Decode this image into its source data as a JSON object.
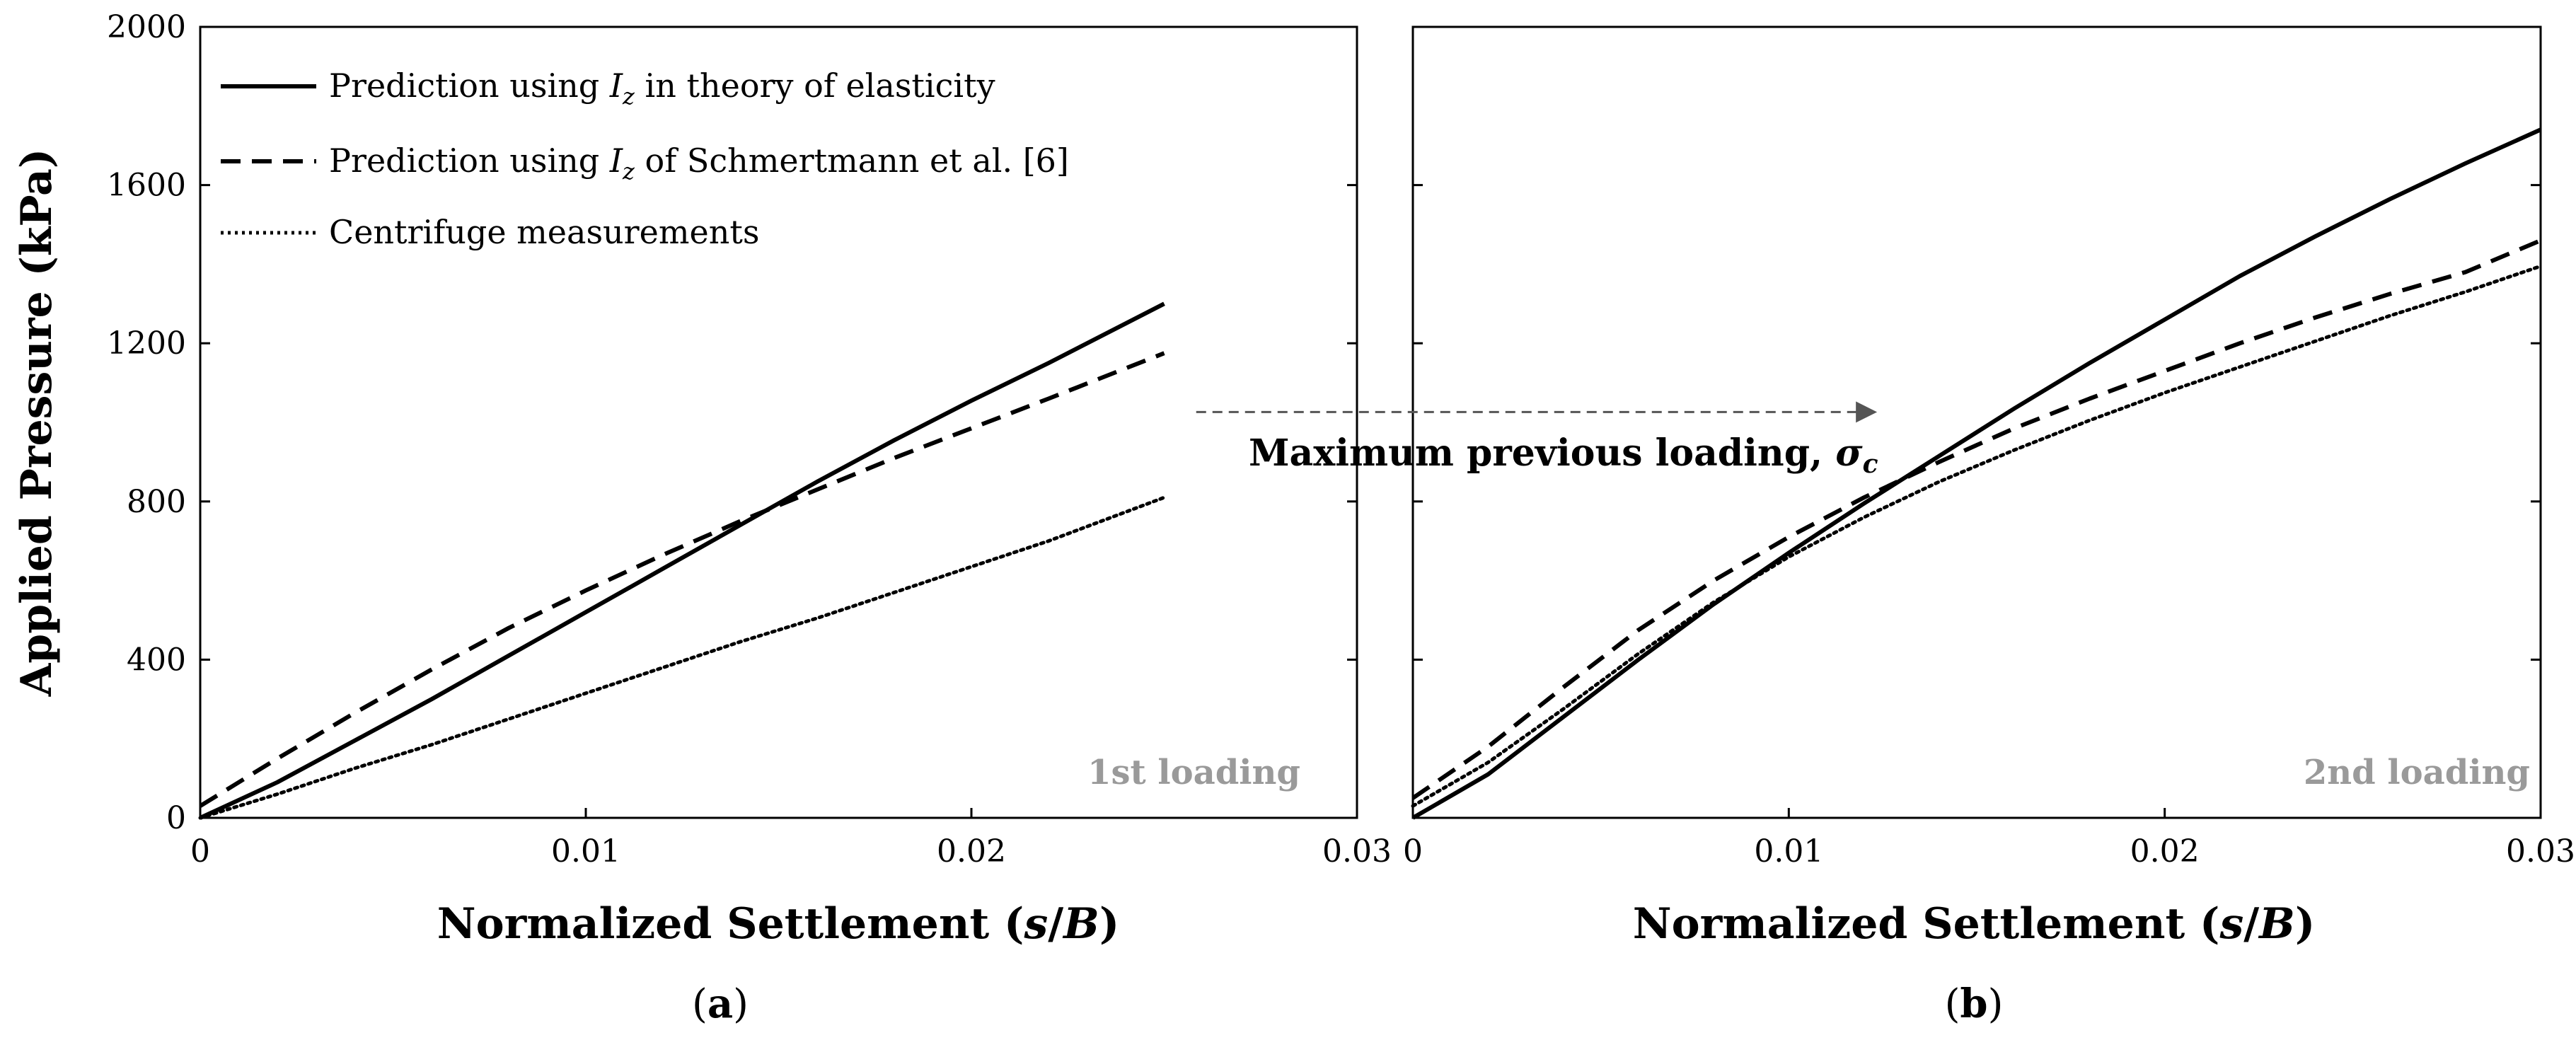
{
  "chart_data": [
    {
      "type": "line",
      "panel_label": "(a)",
      "loading_label": "1st loading",
      "xlabel": "Normalized Settlement (s/B)",
      "ylabel": "Applied Pressure (kPa)",
      "xlim": [
        0,
        0.03
      ],
      "ylim": [
        0,
        2000
      ],
      "xticks": [
        "0",
        "0.01",
        "0.02",
        "0.03"
      ],
      "yticks": [
        "0",
        "400",
        "800",
        "1200",
        "1600",
        "2000"
      ],
      "legend": {
        "placement": "top-left",
        "entries": [
          {
            "text": "Prediction using I_z in theory of elasticity",
            "style": "solid"
          },
          {
            "text": "Prediction using I_z of Schmertmann et al. [6]",
            "style": "dashed"
          },
          {
            "text": "Centrifuge measurements",
            "style": "dotted"
          }
        ]
      },
      "series": [
        {
          "style": "solid",
          "x": [
            0,
            0.002,
            0.004,
            0.006,
            0.008,
            0.01,
            0.012,
            0.014,
            0.016,
            0.018,
            0.02,
            0.022,
            0.025
          ],
          "y": [
            0,
            90,
            195,
            300,
            410,
            520,
            630,
            740,
            850,
            955,
            1055,
            1150,
            1300
          ]
        },
        {
          "style": "dashed",
          "x": [
            0,
            0.002,
            0.004,
            0.006,
            0.008,
            0.01,
            0.012,
            0.014,
            0.016,
            0.018,
            0.02,
            0.022,
            0.025
          ],
          "y": [
            30,
            150,
            265,
            375,
            480,
            575,
            665,
            750,
            830,
            910,
            985,
            1060,
            1175
          ]
        },
        {
          "style": "dotted",
          "x": [
            0,
            0.002,
            0.004,
            0.006,
            0.008,
            0.01,
            0.012,
            0.014,
            0.016,
            0.018,
            0.02,
            0.022,
            0.025
          ],
          "y": [
            0,
            60,
            125,
            185,
            250,
            315,
            380,
            445,
            505,
            570,
            635,
            700,
            810
          ]
        }
      ]
    },
    {
      "type": "line",
      "panel_label": "(b)",
      "loading_label": "2nd loading",
      "xlabel": "Normalized Settlement (s/B)",
      "xlim": [
        0,
        0.03
      ],
      "ylim": [
        0,
        2000
      ],
      "xticks": [
        "0",
        "0.01",
        "0.02",
        "0.03"
      ],
      "series": [
        {
          "style": "solid",
          "x": [
            0,
            0.002,
            0.004,
            0.006,
            0.008,
            0.01,
            0.012,
            0.014,
            0.016,
            0.018,
            0.02,
            0.022,
            0.024,
            0.026,
            0.028,
            0.03
          ],
          "y": [
            0,
            110,
            255,
            400,
            540,
            670,
            795,
            915,
            1035,
            1150,
            1260,
            1370,
            1470,
            1565,
            1655,
            1740
          ]
        },
        {
          "style": "dashed",
          "x": [
            0,
            0.002,
            0.004,
            0.006,
            0.008,
            0.01,
            0.012,
            0.014,
            0.016,
            0.018,
            0.02,
            0.022,
            0.024,
            0.026,
            0.028,
            0.03
          ],
          "y": [
            50,
            180,
            330,
            475,
            600,
            710,
            810,
            900,
            985,
            1060,
            1130,
            1200,
            1265,
            1325,
            1380,
            1460
          ]
        },
        {
          "style": "dotted",
          "x": [
            0,
            0.002,
            0.004,
            0.006,
            0.008,
            0.01,
            0.012,
            0.014,
            0.016,
            0.018,
            0.02,
            0.022,
            0.024,
            0.026,
            0.028,
            0.03
          ],
          "y": [
            30,
            140,
            275,
            415,
            545,
            660,
            760,
            850,
            930,
            1005,
            1075,
            1140,
            1205,
            1270,
            1330,
            1395
          ]
        }
      ]
    }
  ],
  "annotation": {
    "text": "Maximum previous loading, σc",
    "from": {
      "panel": 0,
      "x": 0.0255,
      "y": 815
    },
    "to": {
      "panel": 1,
      "x": 0.0125,
      "y": 815
    }
  }
}
